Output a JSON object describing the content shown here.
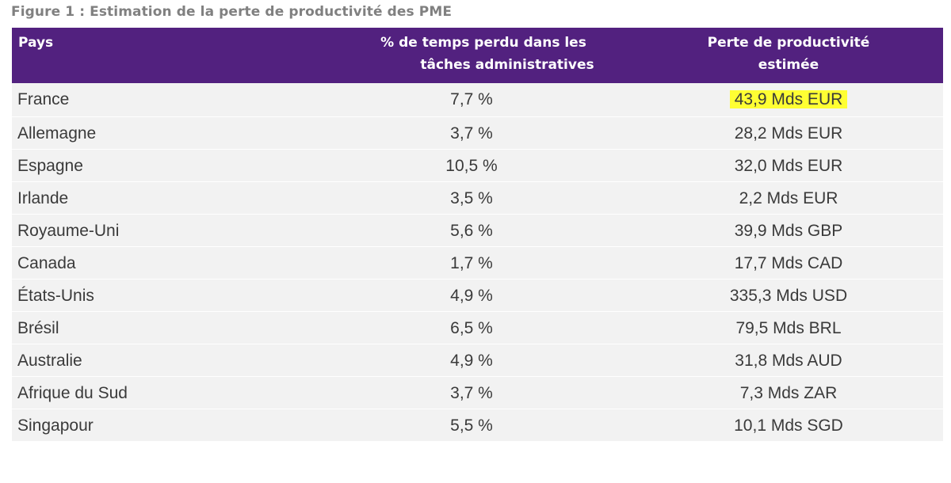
{
  "caption": "Figure 1 : Estimation de la perte de productivité des PME",
  "headers": {
    "country": "Pays",
    "pct_line1": "% de temps perdu dans les",
    "pct_line2": "tâches administratives",
    "loss_line1": "Perte de productivité",
    "loss_line2": "estimée"
  },
  "highlight_color": "#ffff33",
  "header_color": "#52217f",
  "rows": [
    {
      "country": "France",
      "pct": "7,7 %",
      "loss": "43,9 Mds EUR",
      "highlighted": true
    },
    {
      "country": "Allemagne",
      "pct": "3,7 %",
      "loss": "28,2 Mds EUR"
    },
    {
      "country": "Espagne",
      "pct": "10,5 %",
      "loss": "32,0 Mds EUR"
    },
    {
      "country": "Irlande",
      "pct": "3,5 %",
      "loss": "2,2 Mds EUR"
    },
    {
      "country": "Royaume-Uni",
      "pct": "5,6 %",
      "loss": "39,9 Mds GBP"
    },
    {
      "country": "Canada",
      "pct": "1,7 %",
      "loss": "17,7 Mds CAD"
    },
    {
      "country": "États-Unis",
      "pct": "4,9 %",
      "loss": "335,3 Mds USD"
    },
    {
      "country": "Brésil",
      "pct": "6,5 %",
      "loss": "79,5 Mds BRL"
    },
    {
      "country": "Australie",
      "pct": "4,9 %",
      "loss": "31,8 Mds AUD"
    },
    {
      "country": "Afrique du Sud",
      "pct": "3,7 %",
      "loss": "7,3 Mds ZAR"
    },
    {
      "country": "Singapour",
      "pct": "5,5 %",
      "loss": "10,1 Mds SGD"
    }
  ]
}
